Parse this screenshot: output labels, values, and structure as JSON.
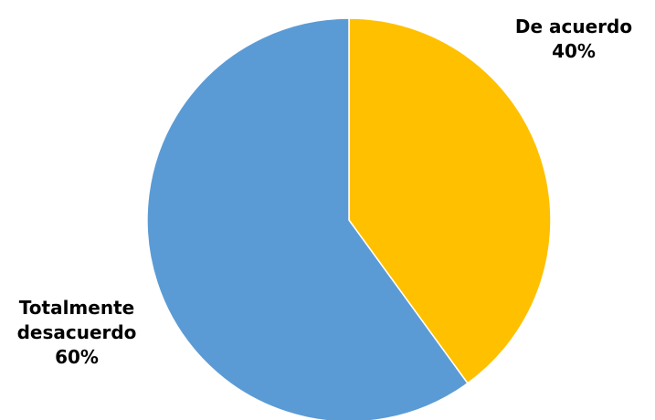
{
  "chart_data": {
    "type": "pie",
    "start_angle_deg": 0,
    "direction": "clockwise",
    "slices": [
      {
        "label_lines": [
          "De acuerdo"
        ],
        "value": 40,
        "value_label": "40%",
        "color": "#FFC000"
      },
      {
        "label_lines": [
          "Totalmente",
          "desacuerdo"
        ],
        "value": 60,
        "value_label": "60%",
        "color": "#5B9BD5"
      }
    ],
    "legend": "none"
  }
}
